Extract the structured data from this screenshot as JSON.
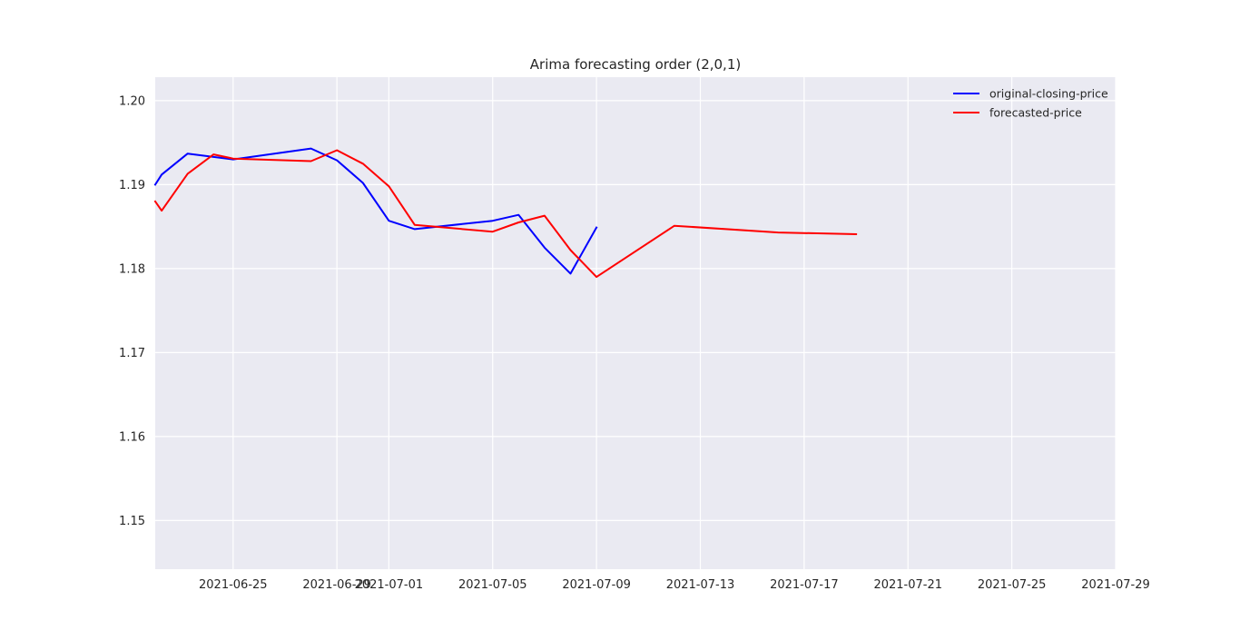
{
  "chart_data": {
    "type": "line",
    "title": "Arima forecasting order (2,0,1)",
    "xlabel": "",
    "ylabel": "",
    "x_type": "date",
    "xlim": [
      "2021-06-22",
      "2021-07-29"
    ],
    "ylim": [
      1.1442,
      1.2028
    ],
    "x_ticks": [
      "2021-06-25",
      "2021-06-29",
      "2021-07-01",
      "2021-07-05",
      "2021-07-09",
      "2021-07-13",
      "2021-07-17",
      "2021-07-21",
      "2021-07-25",
      "2021-07-29"
    ],
    "y_ticks": [
      1.15,
      1.16,
      1.17,
      1.18,
      1.19,
      1.2
    ],
    "y_tick_labels": [
      "1.15",
      "1.16",
      "1.17",
      "1.18",
      "1.19",
      "1.20"
    ],
    "grid": true,
    "legend_position": "top-right",
    "series": [
      {
        "name": "original-closing-price",
        "color": "#0000ff",
        "points": [
          [
            "2021-06-22",
            1.19
          ],
          [
            "2021-06-22 06:00",
            1.1912
          ],
          [
            "2021-06-23 06:00",
            1.1937
          ],
          [
            "2021-06-25",
            1.193
          ],
          [
            "2021-06-28",
            1.1943
          ],
          [
            "2021-06-29",
            1.1929
          ],
          [
            "2021-06-30",
            1.1902
          ],
          [
            "2021-07-01",
            1.1857
          ],
          [
            "2021-07-02",
            1.1847
          ],
          [
            "2021-07-05",
            1.1857
          ],
          [
            "2021-07-06",
            1.1864
          ],
          [
            "2021-07-07",
            1.1825
          ],
          [
            "2021-07-08",
            1.1794
          ],
          [
            "2021-07-09",
            1.1849
          ]
        ]
      },
      {
        "name": "forecasted-price",
        "color": "#ff0000",
        "points": [
          [
            "2021-06-22",
            1.188
          ],
          [
            "2021-06-22 06:00",
            1.1869
          ],
          [
            "2021-06-23 06:00",
            1.1913
          ],
          [
            "2021-06-24 06:00",
            1.1936
          ],
          [
            "2021-06-25",
            1.1931
          ],
          [
            "2021-06-28",
            1.1928
          ],
          [
            "2021-06-29",
            1.1941
          ],
          [
            "2021-06-30",
            1.1925
          ],
          [
            "2021-07-01",
            1.1898
          ],
          [
            "2021-07-02",
            1.1852
          ],
          [
            "2021-07-05",
            1.1844
          ],
          [
            "2021-07-06",
            1.1855
          ],
          [
            "2021-07-07",
            1.1863
          ],
          [
            "2021-07-08",
            1.1822
          ],
          [
            "2021-07-09",
            1.179
          ],
          [
            "2021-07-12",
            1.1851
          ],
          [
            "2021-07-16",
            1.1843
          ],
          [
            "2021-07-19",
            1.1841
          ]
        ]
      }
    ]
  }
}
